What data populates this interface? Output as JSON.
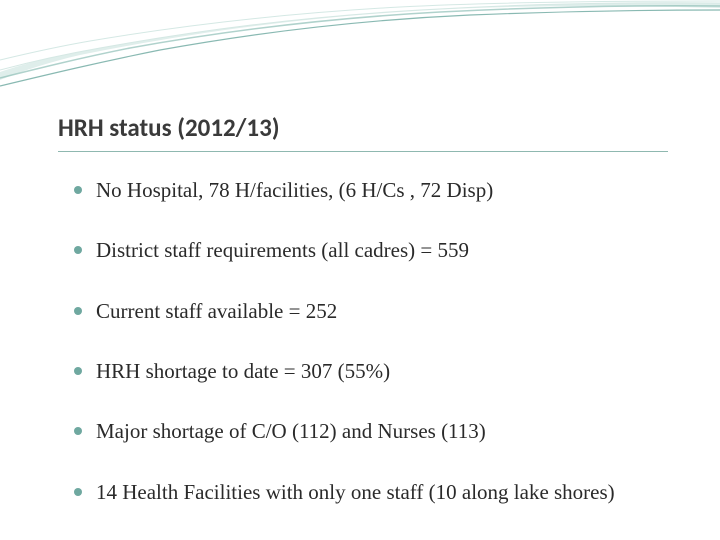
{
  "slide": {
    "title": "HRH status (2012/13)",
    "title_fontsize": 25,
    "title_color": "#3a3a3a",
    "underline_color": "#8fb8b0",
    "body_fontsize": 21,
    "body_color": "#2a2a2a",
    "bullet_color": "#6fa8a0",
    "bullet_spacing": 32,
    "bullets": [
      "No Hospital, 78 H/facilities, (6 H/Cs , 72 Disp)",
      " District staff requirements (all cadres) = 559",
      "Current staff available = 252",
      "HRH shortage to date = 307 (55%)",
      "Major shortage of C/O (112) and Nurses (113)",
      "14 Health Facilities with only one staff (10 along lake shores)"
    ],
    "wave": {
      "colors": {
        "top_fill": "#ffffff",
        "light_teal": "#c9e2dd",
        "mid_teal": "#8ebfb6",
        "dark_teal": "#3a8a7e",
        "stroke_light": "#d5e8e4"
      }
    },
    "background_color": "#ffffff"
  }
}
